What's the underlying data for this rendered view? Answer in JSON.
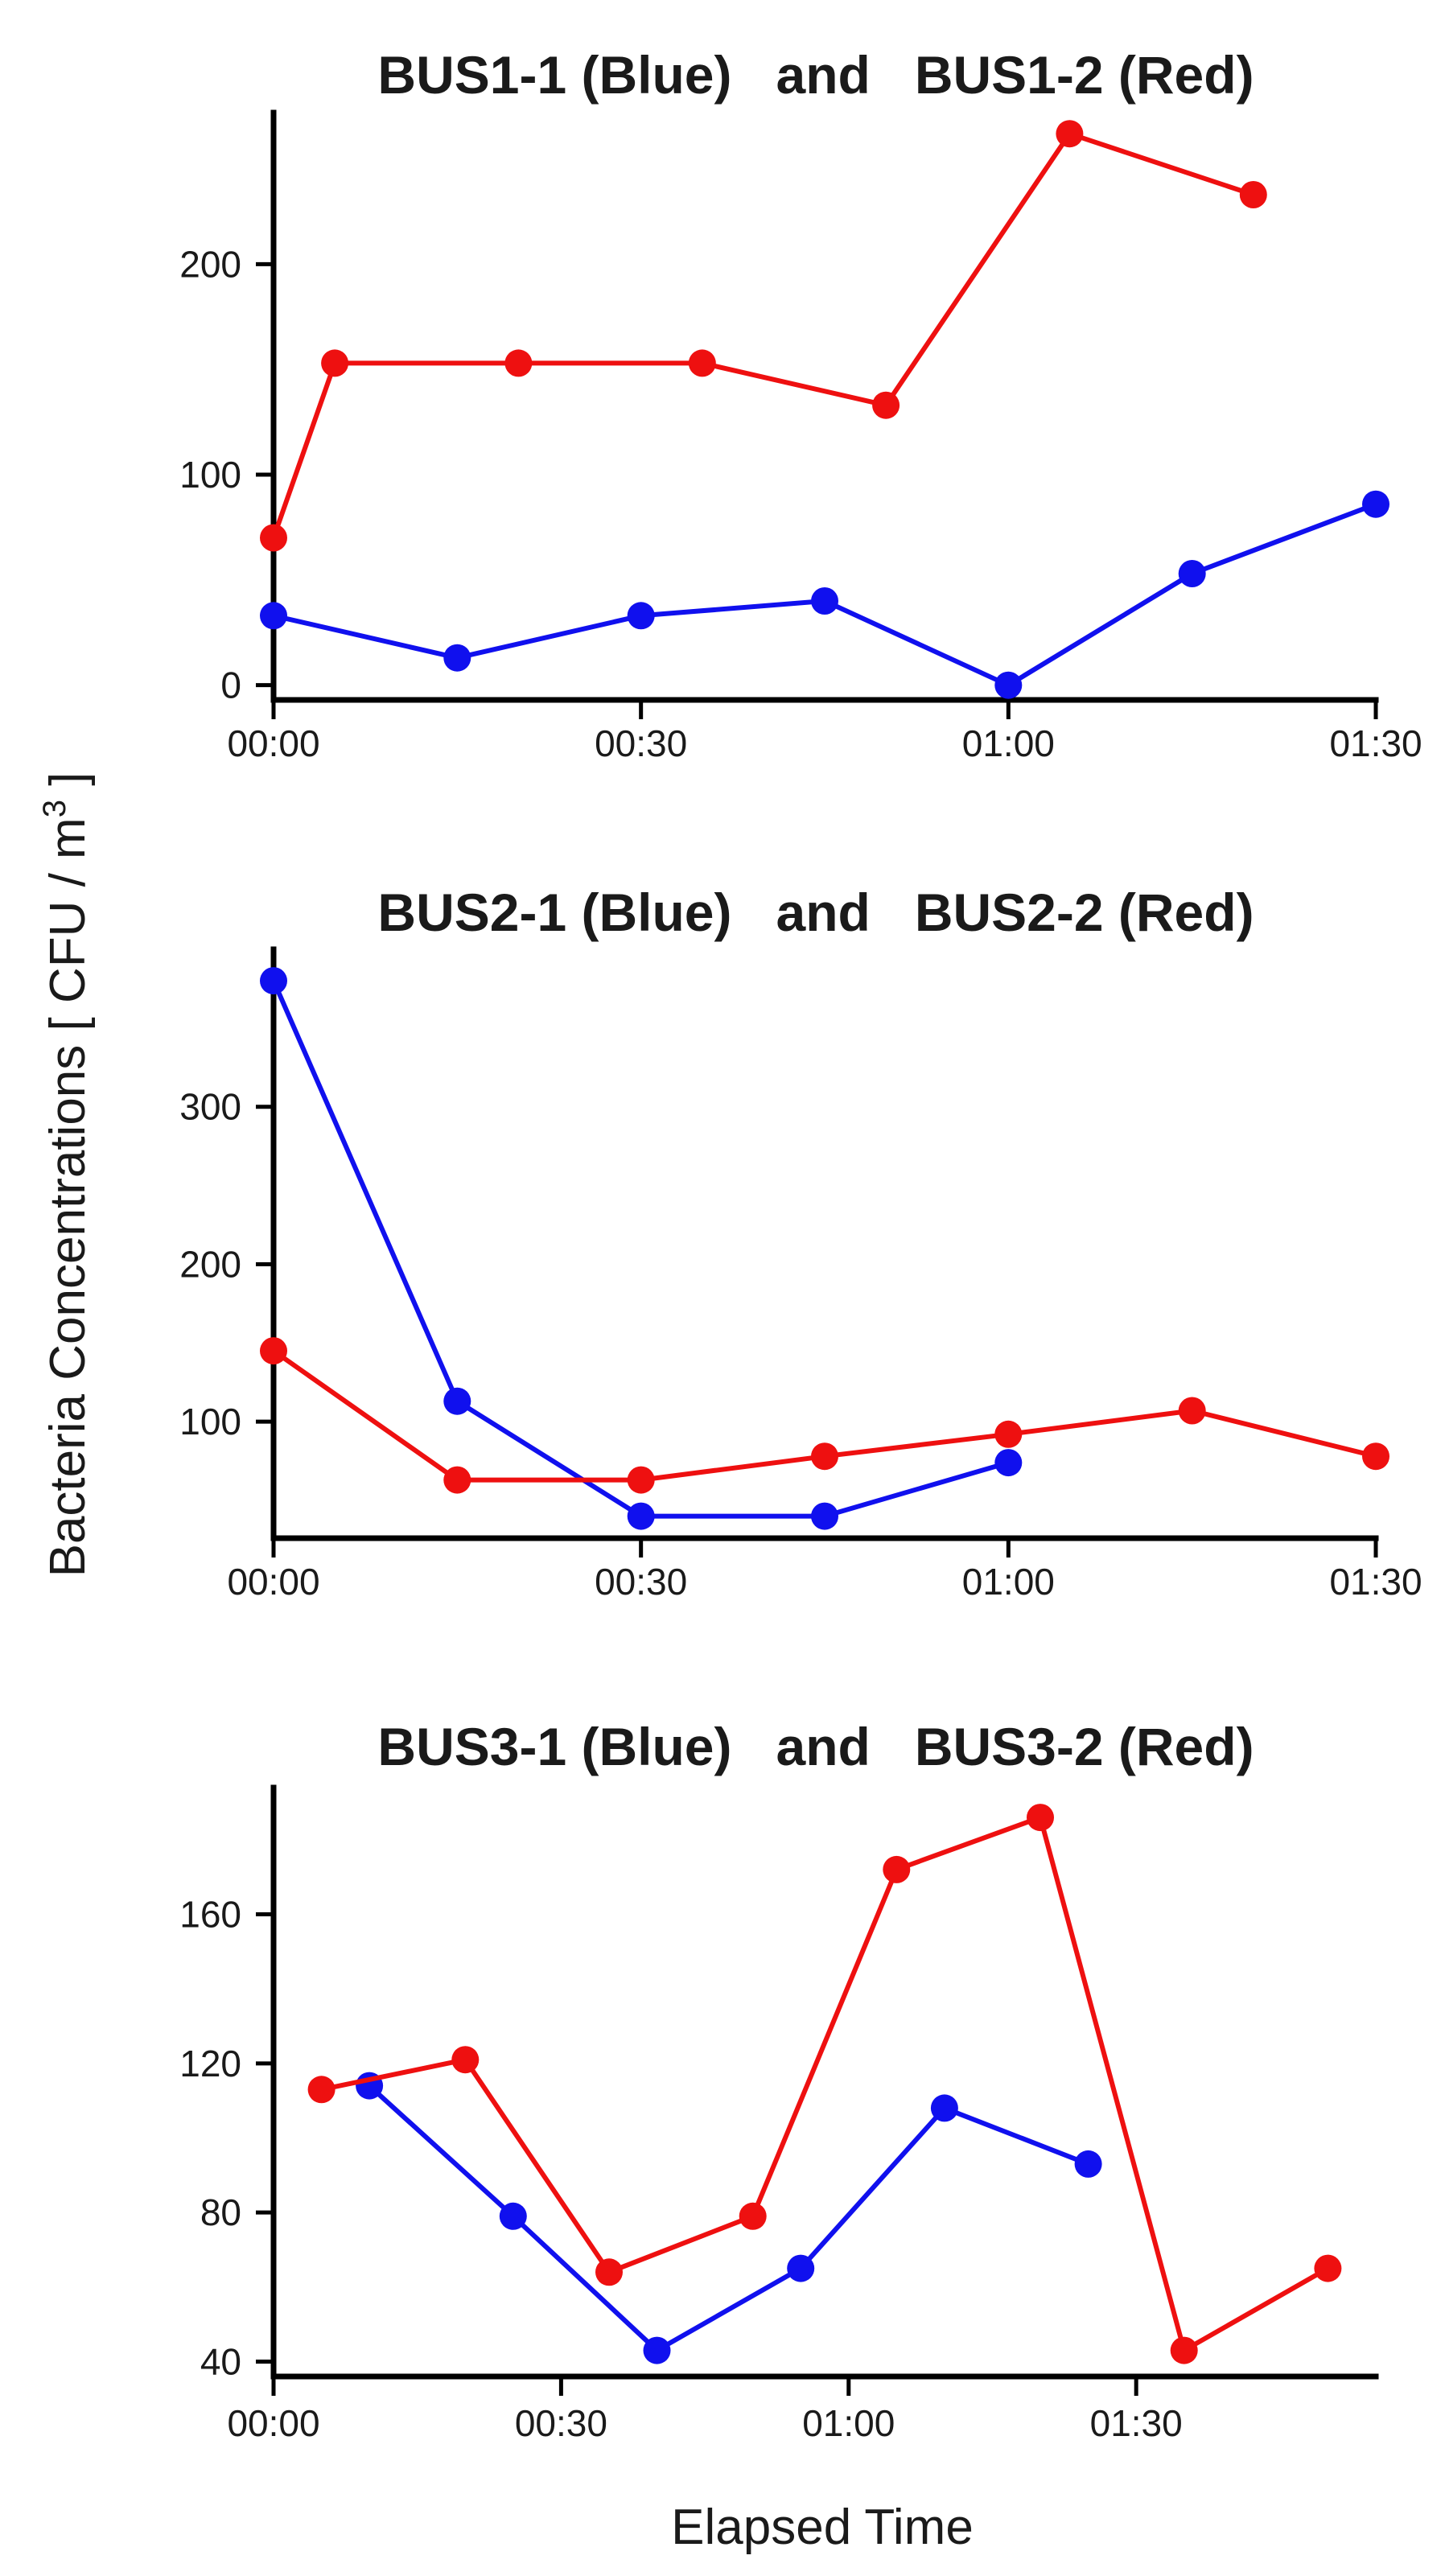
{
  "figure": {
    "ylabel_main": "Bacteria Concentrations [ CFU / m",
    "ylabel_sup": "3",
    "ylabel_end": " ]",
    "xlabel": "Elapsed Time"
  },
  "colors": {
    "blue": "#1010ee",
    "red": "#ee1010",
    "axis": "#000000"
  },
  "chart_data": [
    {
      "type": "line",
      "title": "BUS1-1 (Blue)   and   BUS1-2 (Red)",
      "xlabel": "",
      "ylabel": "",
      "xlim": [
        0,
        90
      ],
      "ylim": [
        -7,
        272
      ],
      "xticks": [
        0,
        30,
        60,
        90
      ],
      "xtick_labels": [
        "00:00",
        "00:30",
        "01:00",
        "01:30"
      ],
      "yticks": [
        0,
        100,
        200
      ],
      "ytick_labels": [
        "0",
        "100",
        "200"
      ],
      "series": [
        {
          "name": "BUS1-1",
          "color": "blue",
          "x": [
            0,
            15,
            30,
            45,
            60,
            75,
            90
          ],
          "y": [
            33,
            13,
            33,
            40,
            0,
            53,
            86
          ]
        },
        {
          "name": "BUS1-2",
          "color": "red",
          "x": [
            0,
            5,
            20,
            35,
            50,
            65,
            80
          ],
          "y": [
            70,
            153,
            153,
            153,
            133,
            262,
            233
          ]
        }
      ]
    },
    {
      "type": "line",
      "title": "BUS2-1 (Blue)   and   BUS2-2 (Red)",
      "xlabel": "",
      "ylabel": "",
      "xlim": [
        0,
        90
      ],
      "ylim": [
        26,
        400
      ],
      "xticks": [
        0,
        30,
        60,
        90
      ],
      "xtick_labels": [
        "00:00",
        "00:30",
        "01:00",
        "01:30"
      ],
      "yticks": [
        100,
        200,
        300
      ],
      "ytick_labels": [
        "100",
        "200",
        "300"
      ],
      "series": [
        {
          "name": "BUS2-1",
          "color": "blue",
          "x": [
            0,
            15,
            30,
            45,
            60
          ],
          "y": [
            380,
            113,
            40,
            40,
            74
          ]
        },
        {
          "name": "BUS2-2",
          "color": "red",
          "x": [
            0,
            15,
            30,
            45,
            60,
            75,
            90
          ],
          "y": [
            145,
            63,
            63,
            78,
            92,
            107,
            78
          ]
        }
      ]
    },
    {
      "type": "line",
      "title": "BUS3-1 (Blue)   and   BUS3-2 (Red)",
      "xlabel": "Elapsed Time",
      "ylabel": "",
      "xlim": [
        0,
        115
      ],
      "ylim": [
        36,
        194
      ],
      "xticks": [
        0,
        30,
        60,
        90
      ],
      "xtick_labels": [
        "00:00",
        "00:30",
        "01:00",
        "01:30"
      ],
      "yticks": [
        40,
        80,
        120,
        160
      ],
      "ytick_labels": [
        "40",
        "80",
        "120",
        "160"
      ],
      "series": [
        {
          "name": "BUS3-1",
          "color": "blue",
          "x": [
            10,
            25,
            40,
            55,
            70,
            85
          ],
          "y": [
            114,
            79,
            43,
            65,
            108,
            93
          ]
        },
        {
          "name": "BUS3-2",
          "color": "red",
          "x": [
            5,
            20,
            35,
            50,
            65,
            80,
            95,
            110
          ],
          "y": [
            113,
            121,
            64,
            79,
            172,
            186,
            43,
            65
          ]
        }
      ]
    }
  ]
}
